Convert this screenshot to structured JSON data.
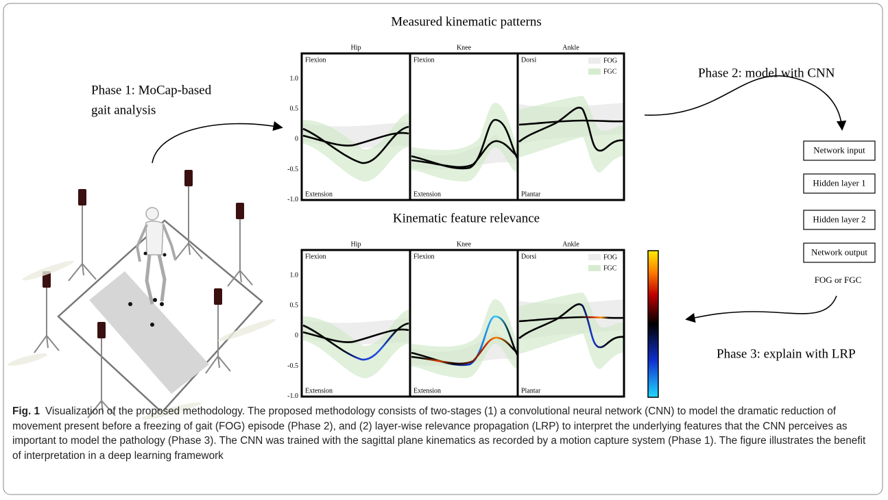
{
  "figure": {
    "panels": [
      {
        "title": "Measured kinematic patterns",
        "subplots": [
          {
            "title": "Hip",
            "top": "Flexion",
            "bottom": "Extension"
          },
          {
            "title": "Knee",
            "top": "Flexion",
            "bottom": "Extension"
          },
          {
            "title": "Ankle",
            "top": "Dorsi",
            "bottom": "Plantar"
          }
        ],
        "yticks": [
          "1.0",
          "0.5",
          "0",
          "-0.5",
          "-1.0"
        ],
        "legend": [
          "FOG",
          "FGC"
        ]
      },
      {
        "title": "Kinematic feature relevance",
        "subplots": [
          {
            "title": "Hip",
            "top": "Flexion",
            "bottom": "Extension"
          },
          {
            "title": "Knee",
            "top": "Flexion",
            "bottom": "Extension"
          },
          {
            "title": "Ankle",
            "top": "Dorsi",
            "bottom": "Plantar"
          }
        ],
        "yticks": [
          "1.0",
          "0.5",
          "0",
          "-0.5",
          "-1.0"
        ],
        "legend": [
          "FOG",
          "FGC"
        ]
      }
    ],
    "phases": {
      "phase1": [
        "Phase 1: MoCap-based",
        "gait analysis"
      ],
      "phase2": "Phase 2: model with CNN",
      "phase3": "Phase 3: explain with LRP"
    },
    "network": [
      "Network input",
      "Hidden layer 1",
      "Hidden layer 2",
      "Network output"
    ],
    "network_result": "FOG or FGC",
    "caption": {
      "label": "Fig. 1",
      "text": "Visualization of the proposed methodology. The proposed methodology consists of two-stages (1) a convolutional neural network (CNN) to model the dramatic reduction of movement present before a freezing of gait (FOG) episode (Phase 2), and (2) layer-wise relevance propagation (LRP) to interpret the underlying features that the CNN perceives as important to model the pathology (Phase 3). The CNN was trained with the sagittal plane kinematics as recorded by a motion capture system (Phase 1). The figure illustrates the benefit of interpretation in a deep learning framework"
    }
  }
}
